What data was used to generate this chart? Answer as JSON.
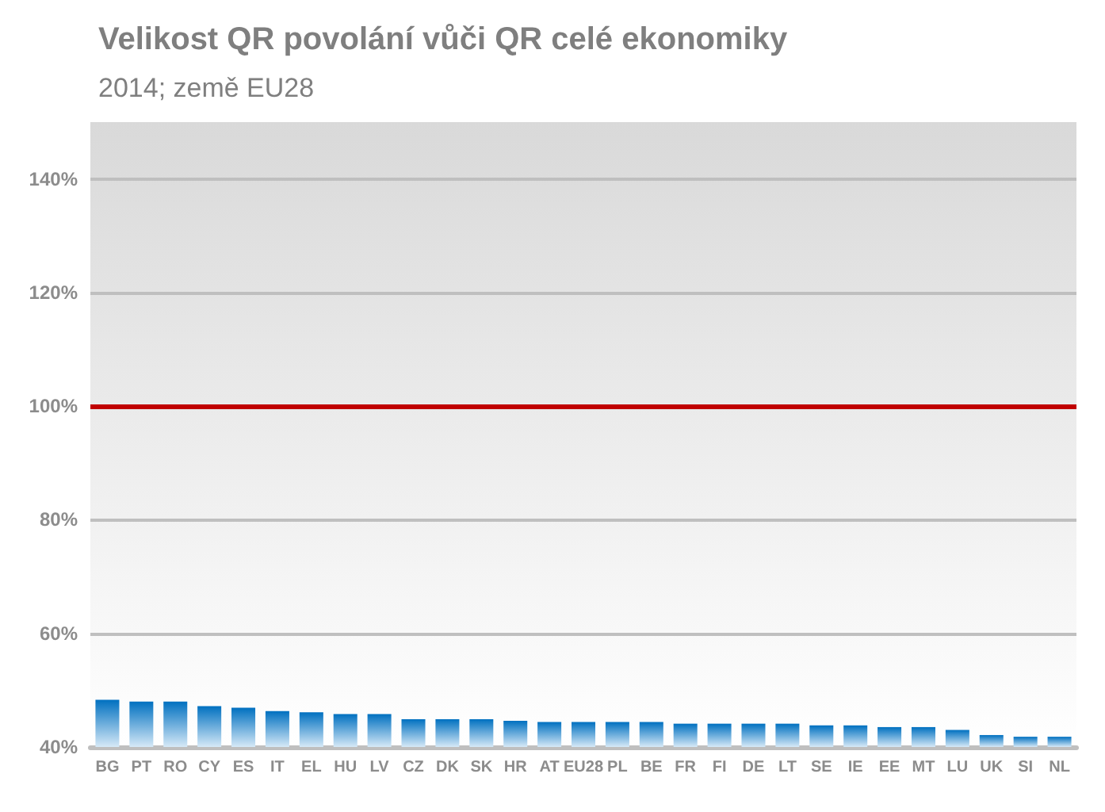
{
  "chart_data": {
    "type": "bar",
    "title": "Velikost QR povolání vůči QR celé ekonomiky",
    "subtitle": "2014; země EU28",
    "categories": [
      "BG",
      "PT",
      "RO",
      "CY",
      "ES",
      "IT",
      "EL",
      "HU",
      "LV",
      "CZ",
      "DK",
      "SK",
      "HR",
      "AT",
      "EU28",
      "PL",
      "BE",
      "FR",
      "FI",
      "DE",
      "LT",
      "SE",
      "IE",
      "EE",
      "MT",
      "LU",
      "UK",
      "SI",
      "NL"
    ],
    "values": [
      48.3,
      48.0,
      48.0,
      47.2,
      46.9,
      46.3,
      46.1,
      45.8,
      45.8,
      44.9,
      44.9,
      44.9,
      44.6,
      44.4,
      44.4,
      44.4,
      44.4,
      44.1,
      44.1,
      44.1,
      44.1,
      43.8,
      43.8,
      43.5,
      43.5,
      43.0,
      42.1,
      41.8,
      41.8
    ],
    "color": "#0070c0",
    "ylim": [
      40,
      150
    ],
    "yticks": [
      {
        "value": 40,
        "label": "40%"
      },
      {
        "value": 60,
        "label": "60%"
      },
      {
        "value": 80,
        "label": "80%"
      },
      {
        "value": 100,
        "label": "100%"
      },
      {
        "value": 120,
        "label": "120%"
      },
      {
        "value": 140,
        "label": "140%"
      }
    ],
    "ref_lines": [
      {
        "axis": "y",
        "value": 100,
        "color": "#c00000"
      }
    ],
    "grid": "y"
  }
}
